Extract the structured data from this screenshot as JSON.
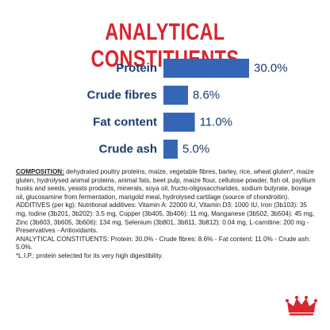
{
  "colors": {
    "title": "#d9252f",
    "label": "#1a3c6e",
    "bar": "#3566b5",
    "value": "#1a3c6e",
    "logo": "#d9252f"
  },
  "header": {
    "title": "ANALYTICAL CONSTITUENTS"
  },
  "chart_data": {
    "type": "bar",
    "orientation": "horizontal",
    "title": "ANALYTICAL CONSTITUENTS",
    "categories": [
      "Protein",
      "Crude fibres",
      "Fat content",
      "Crude ash"
    ],
    "values": [
      30.0,
      8.6,
      11.0,
      5.0
    ],
    "value_labels": [
      "30.0%",
      "8.6%",
      "11.0%",
      "5.0%"
    ],
    "xlabel": "",
    "ylabel": "",
    "xlim": [
      0,
      30
    ],
    "grid": false,
    "legend": "none"
  },
  "composition": {
    "label": "COMPOSITION:",
    "body": " dehydrated poultry proteins, maize, vegetable fibres, barley, rice, wheat gluten*, maize gluten, hydrolysed animal proteins, animal fats, beet pulp, maize flour, cellulose powder, fish oil, psyllium husks and seeds, yeasts products, minerals, soya oil, fructo-oligosaccharides, sodium butyrate, borage oil, glucosamine from fermentation, marigold meal, hydrolysed cartilage (source of chondroitin).",
    "additives": "ADDITIVES (per kg): Nutritional additives: Vitamin A: 22000 IU, Vitamin D3: 1000 IU, Iron (3b103): 35 mg, Iodine (3b201, 3b202): 3.5 mg, Copper (3b405, 3b406): 11 mg, Manganese (3b502, 3b504): 45 mg, Zinc (3b603, 3b605, 3b606): 134 mg, Selenium (3b801, 3b811, 3b812): 0.04 mg, L-carnitine: 200 mg - Preservatives - Antioxidants.",
    "analytical": "ANALYTICAL CONSTITUENTS: Protein: 30.0% - Crude fibres: 8.6% - Fat content: 11.0% - Crude ash: 5.0%.",
    "footnote": "*L.I.P.: protein selected for its very high digestibility."
  },
  "logo": {
    "icon": "crown-icon"
  }
}
